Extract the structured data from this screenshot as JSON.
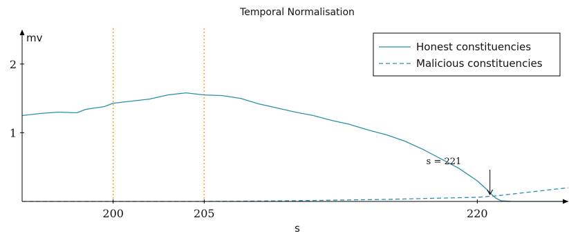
{
  "chart_data": {
    "type": "line",
    "title": "Temporal Normalisation",
    "xlabel": "s",
    "ylabel": "mv",
    "xlim": [
      195,
      225
    ],
    "ylim": [
      0,
      2.5
    ],
    "x_ticks": [
      200,
      205,
      220
    ],
    "y_ticks": [
      1,
      2
    ],
    "grid": false,
    "legend_position": "top-right",
    "vertical_markers": {
      "x": [
        200,
        205
      ],
      "style": "dotted",
      "color": "#f5a623"
    },
    "annotation": {
      "text": "s = 221",
      "x": 221,
      "y": 0.07
    },
    "series": [
      {
        "name": "Honest constituencies",
        "style": "solid",
        "color": "#2a8fa8",
        "x": [
          195,
          196,
          197,
          198,
          198.5,
          199,
          199.5,
          200,
          201,
          202,
          203,
          204,
          205,
          206,
          207,
          208,
          209,
          210,
          211,
          212,
          213,
          214,
          215,
          216,
          217,
          218,
          219,
          220,
          220.5,
          220.8,
          221,
          221.3,
          222,
          225
        ],
        "values": [
          1.25,
          1.28,
          1.3,
          1.29,
          1.34,
          1.36,
          1.38,
          1.43,
          1.46,
          1.49,
          1.55,
          1.58,
          1.55,
          1.54,
          1.5,
          1.42,
          1.36,
          1.3,
          1.25,
          1.18,
          1.12,
          1.04,
          0.97,
          0.88,
          0.76,
          0.62,
          0.48,
          0.3,
          0.18,
          0.1,
          0.05,
          0.01,
          0.0,
          0.0
        ]
      },
      {
        "name": "Malicious constituencies",
        "style": "dashed",
        "color": "#2a8fa8",
        "x": [
          195,
          205,
          210,
          215,
          220,
          221,
          225
        ],
        "values": [
          0.0,
          0.0,
          0.01,
          0.03,
          0.06,
          0.08,
          0.2
        ]
      }
    ]
  }
}
